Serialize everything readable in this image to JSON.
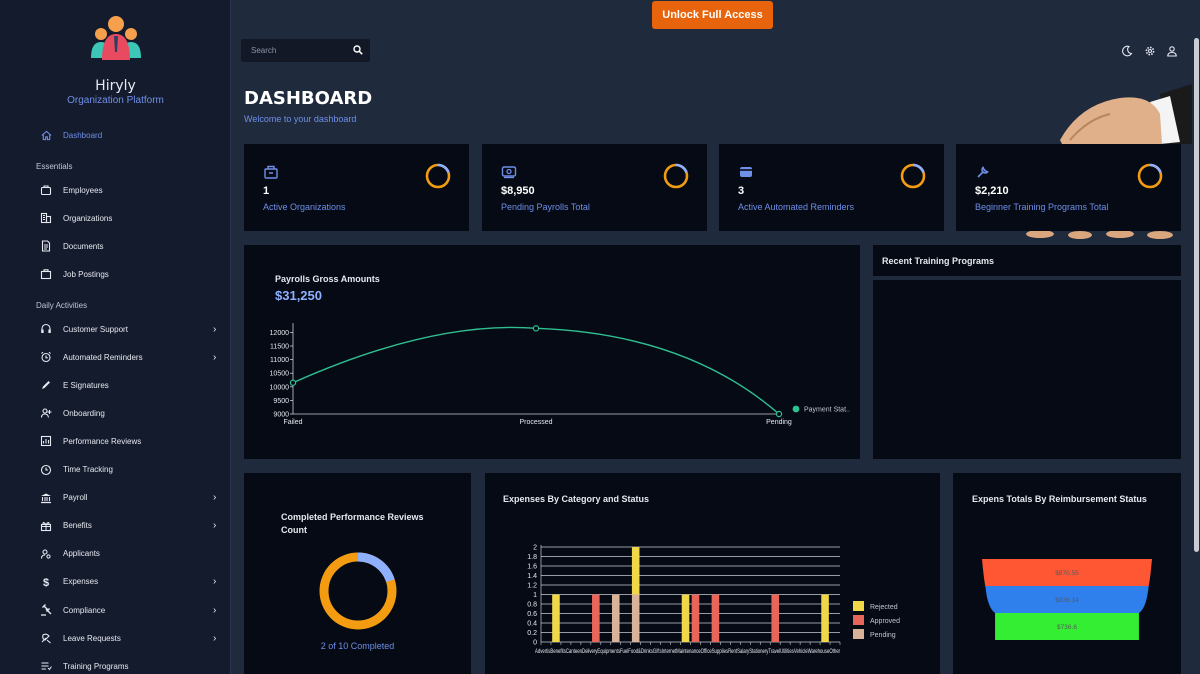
{
  "brand": {
    "name": "Hiryly",
    "subtitle": "Organization Platform"
  },
  "topbar": {
    "unlock_label": "Unlock Full Access",
    "search_placeholder": "Search"
  },
  "page": {
    "title": "DASHBOARD",
    "subtitle": "Welcome to your dashboard"
  },
  "sidebar": {
    "dashboard": "Dashboard",
    "section_essentials": "Essentials",
    "essentials": [
      "Employees",
      "Organizations",
      "Documents",
      "Job Postings"
    ],
    "section_daily": "Daily Activities",
    "daily": [
      {
        "label": "Customer Support",
        "chevron": true,
        "icon": "headset-icon"
      },
      {
        "label": "Automated Reminders",
        "chevron": true,
        "icon": "alarm-icon"
      },
      {
        "label": "E Signatures",
        "chevron": false,
        "icon": "pen-icon"
      },
      {
        "label": "Onboarding",
        "chevron": false,
        "icon": "user-plus-icon"
      },
      {
        "label": "Performance Reviews",
        "chevron": false,
        "icon": "review-icon"
      },
      {
        "label": "Time Tracking",
        "chevron": false,
        "icon": "clock-icon"
      },
      {
        "label": "Payroll",
        "chevron": true,
        "icon": "bank-icon"
      },
      {
        "label": "Benefits",
        "chevron": true,
        "icon": "gift-icon"
      },
      {
        "label": "Applicants",
        "chevron": false,
        "icon": "applicant-icon"
      },
      {
        "label": "Expenses",
        "chevron": true,
        "icon": "dollar-icon"
      },
      {
        "label": "Compliance",
        "chevron": true,
        "icon": "gavel-icon"
      },
      {
        "label": "Leave Requests",
        "chevron": true,
        "icon": "leave-icon"
      },
      {
        "label": "Training Programs",
        "chevron": false,
        "icon": "list-icon"
      }
    ]
  },
  "stats": [
    {
      "value": "1",
      "label": "Active Organizations",
      "icon": "organization-icon"
    },
    {
      "value": "$8,950",
      "label": "Pending Payrolls Total",
      "icon": "money-icon"
    },
    {
      "value": "3",
      "label": "Active Automated Reminders",
      "icon": "card-icon"
    },
    {
      "value": "$2,210",
      "label": "Beginner Training Programs Total",
      "icon": "wrench-icon"
    }
  ],
  "colors": {
    "accent": "#6f8fe8",
    "ring_orange": "#f39c12",
    "ring_blue": "#8fb0ff",
    "line": "#2fbf91",
    "unlock": "#e8640c"
  },
  "payroll_chart": {
    "title": "Payrolls Gross Amounts",
    "total": "$31,250",
    "chart_data": {
      "type": "line",
      "categories": [
        "Failed",
        "Processed",
        "Pending"
      ],
      "series": [
        {
          "name": "Payment Stat..",
          "values": [
            10150,
            12150,
            9000
          ]
        }
      ],
      "yticks": [
        "12000",
        "11500",
        "11000",
        "10500",
        "10000",
        "9500",
        "9000"
      ],
      "ylim": [
        9000,
        12200
      ]
    }
  },
  "recent_training": {
    "title": "Recent Training Programs"
  },
  "reviews": {
    "title_line1": "Completed Performance Reviews",
    "title_line2": "Count",
    "completed_text": "2 of 10 Completed",
    "completed": 2,
    "total": 10
  },
  "expenses_chart": {
    "title": "Expenses By Category and Status",
    "chart_data": {
      "type": "bar",
      "yticks": [
        "2",
        "1.8",
        "1.6",
        "1.4",
        "1.2",
        "1",
        "0.8",
        "0.6",
        "0.4",
        "0.2",
        "0"
      ],
      "ylim": [
        0,
        2
      ],
      "legend": [
        {
          "name": "Rejected",
          "color": "#f0d74a"
        },
        {
          "name": "Approved",
          "color": "#e8655a"
        },
        {
          "name": "Pending",
          "color": "#d9b29a"
        }
      ],
      "bars": [
        {
          "slot": 1,
          "status": "Rejected",
          "value": 1
        },
        {
          "slot": 5,
          "status": "Approved",
          "value": 1
        },
        {
          "slot": 7,
          "status": "Pending",
          "value": 1
        },
        {
          "slot": 9,
          "status": "Pending",
          "value": 1
        },
        {
          "slot": 9,
          "status": "Rejected",
          "value": 1
        },
        {
          "slot": 14,
          "status": "Rejected",
          "value": 1
        },
        {
          "slot": 15,
          "status": "Approved",
          "value": 1
        },
        {
          "slot": 17,
          "status": "Approved",
          "value": 1
        },
        {
          "slot": 23,
          "status": "Approved",
          "value": 1
        },
        {
          "slot": 28,
          "status": "Rejected",
          "value": 1
        }
      ],
      "xlabels_text": "AdvertisBenefitsCanteenDeliveryEquipmentsFuelFood&DrinksGiftsInternetMaintenanceOfficeSuppliesRentSalaryStationeryTravelUtilitiesVehicleWarehouseOther"
    }
  },
  "funnel_chart": {
    "title": "Expens Totals By Reimbursement Status",
    "chart_data": {
      "type": "funnel",
      "values": [
        {
          "label": "$870.55",
          "value": 870.55,
          "color": "#ff5733"
        },
        {
          "label": "$836.14",
          "value": 836.14,
          "color": "#2f80ed"
        },
        {
          "label": "$736.6",
          "value": 736.6,
          "color": "#33ee33"
        }
      ]
    }
  }
}
